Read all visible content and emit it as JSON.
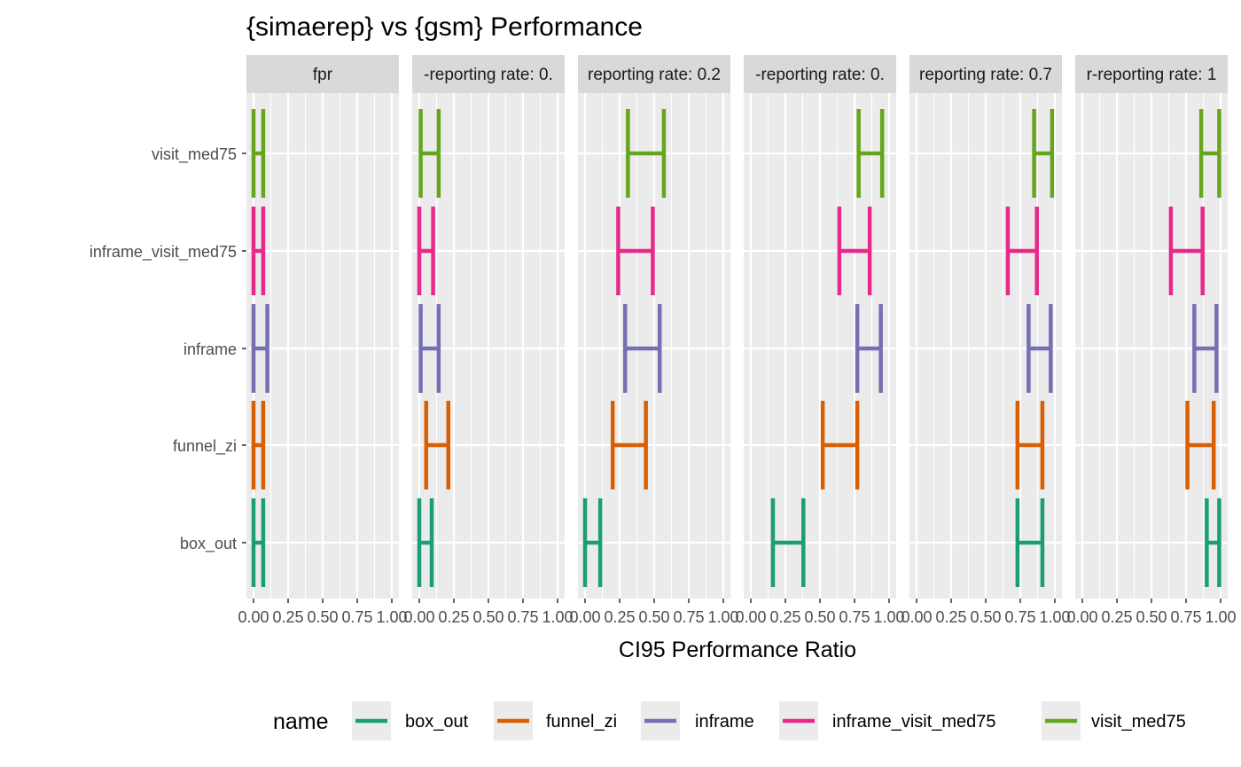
{
  "chart_data": {
    "type": "errorbar",
    "title": "{simaerep} vs {gsm} Performance",
    "xlabel": "CI95 Performance Ratio",
    "ylabel": "",
    "xlim": [
      0,
      1
    ],
    "x_ticks": [
      "0.00",
      "0.25",
      "0.50",
      "0.75",
      "1.00"
    ],
    "grid": true,
    "legend": {
      "title": "name",
      "position": "bottom",
      "entries": [
        "box_out",
        "funnel_zi",
        "inframe",
        "inframe_visit_med75",
        "visit_med75"
      ]
    },
    "categories": [
      "visit_med75",
      "inframe_visit_med75",
      "inframe",
      "funnel_zi",
      "box_out"
    ],
    "colors": {
      "box_out": "#1B9E77",
      "funnel_zi": "#D95F02",
      "inframe": "#7570B3",
      "inframe_visit_med75": "#E7298A",
      "visit_med75": "#66A61E"
    },
    "panels": [
      {
        "label": "fpr",
        "intervals": {
          "visit_med75": [
            0.0,
            0.07
          ],
          "inframe_visit_med75": [
            0.0,
            0.07
          ],
          "inframe": [
            0.0,
            0.1
          ],
          "funnel_zi": [
            0.0,
            0.07
          ],
          "box_out": [
            0.0,
            0.07
          ]
        }
      },
      {
        "label": "-reporting rate: 0.",
        "intervals": {
          "visit_med75": [
            0.01,
            0.14
          ],
          "inframe_visit_med75": [
            0.0,
            0.1
          ],
          "inframe": [
            0.01,
            0.14
          ],
          "funnel_zi": [
            0.05,
            0.21
          ],
          "box_out": [
            0.0,
            0.09
          ]
        }
      },
      {
        "label": "reporting rate: 0.2",
        "intervals": {
          "visit_med75": [
            0.31,
            0.57
          ],
          "inframe_visit_med75": [
            0.24,
            0.49
          ],
          "inframe": [
            0.29,
            0.54
          ],
          "funnel_zi": [
            0.2,
            0.44
          ],
          "box_out": [
            0.0,
            0.11
          ]
        }
      },
      {
        "label": "-reporting rate: 0.",
        "intervals": {
          "visit_med75": [
            0.78,
            0.95
          ],
          "inframe_visit_med75": [
            0.64,
            0.86
          ],
          "inframe": [
            0.77,
            0.94
          ],
          "funnel_zi": [
            0.52,
            0.77
          ],
          "box_out": [
            0.16,
            0.38
          ]
        }
      },
      {
        "label": "reporting rate: 0.7",
        "intervals": {
          "visit_med75": [
            0.85,
            0.98
          ],
          "inframe_visit_med75": [
            0.66,
            0.87
          ],
          "inframe": [
            0.81,
            0.97
          ],
          "funnel_zi": [
            0.73,
            0.91
          ],
          "box_out": [
            0.73,
            0.91
          ]
        }
      },
      {
        "label": "r-reporting rate: 1",
        "intervals": {
          "visit_med75": [
            0.86,
            0.99
          ],
          "inframe_visit_med75": [
            0.64,
            0.87
          ],
          "inframe": [
            0.81,
            0.97
          ],
          "funnel_zi": [
            0.76,
            0.95
          ],
          "box_out": [
            0.9,
            0.99
          ]
        }
      }
    ]
  }
}
